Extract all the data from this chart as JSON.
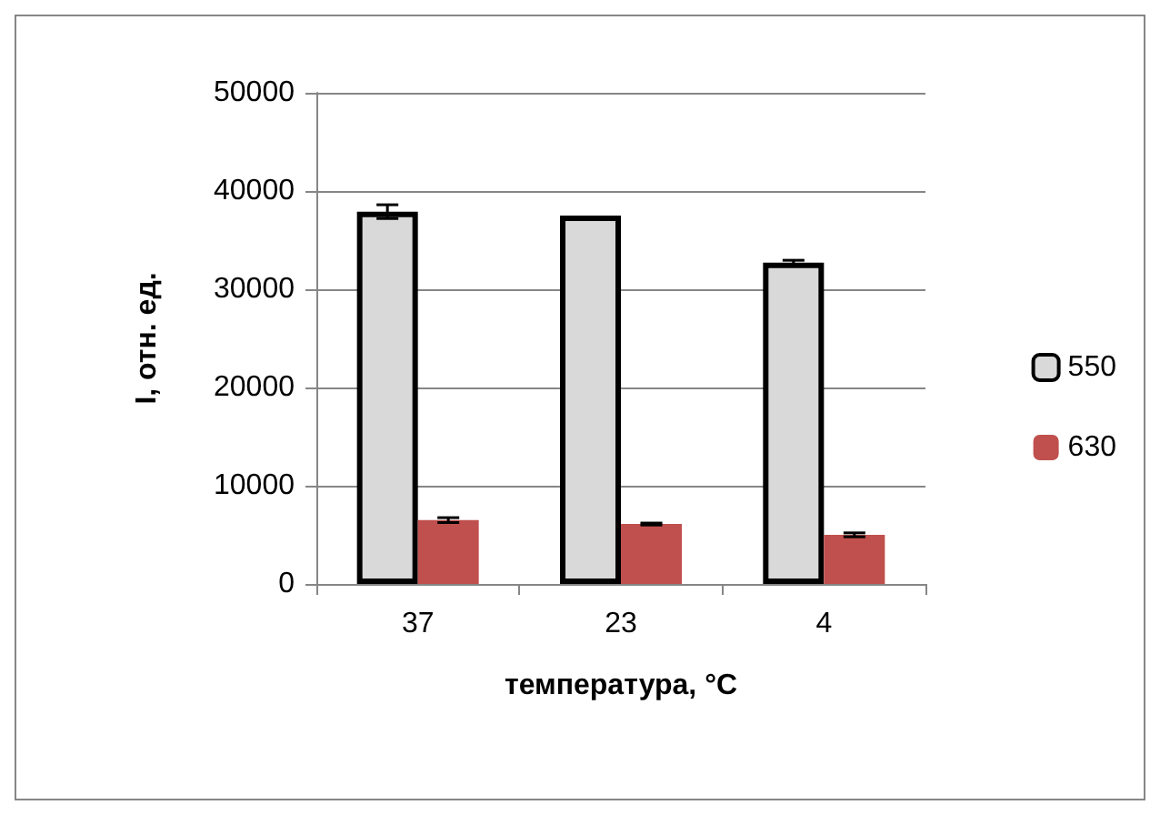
{
  "chart_data": {
    "type": "bar",
    "categories": [
      "37",
      "23",
      "4"
    ],
    "xlabel": "температура, °C",
    "ylabel": "I, отн. ед.",
    "ylim": [
      0,
      50000
    ],
    "yticks": [
      0,
      10000,
      20000,
      30000,
      40000,
      50000
    ],
    "grid": "y",
    "legend": "right",
    "series": [
      {
        "name": "550",
        "color": "#d9d9d9",
        "values": [
          37900,
          37500,
          32700
        ],
        "errors": [
          700,
          null,
          250
        ]
      },
      {
        "name": "630",
        "color": "#c0504d",
        "values": [
          6500,
          6100,
          5000
        ],
        "errors": [
          250,
          100,
          200
        ]
      }
    ]
  }
}
